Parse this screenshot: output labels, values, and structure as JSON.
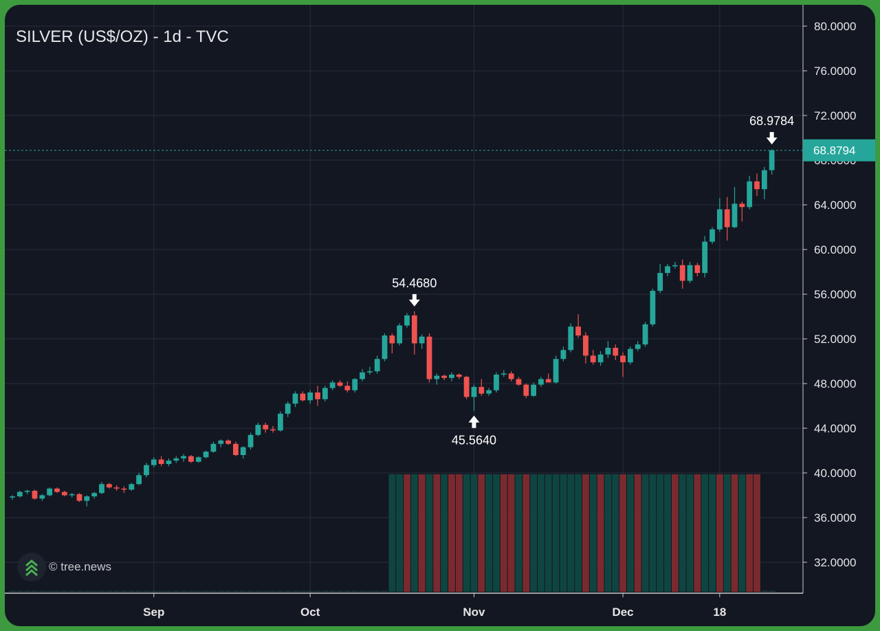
{
  "header": {
    "title": "SILVER (US$/OZ) - 1d - TVC"
  },
  "watermark": {
    "text": "© tree.news",
    "icon": "tree-news-chevrons-icon"
  },
  "colors": {
    "up": "#26a69a",
    "down": "#ef5350",
    "background": "#131722",
    "grid": "#2a2e39",
    "price_label_bg": "#26a69a",
    "volume_up": "#0f4540",
    "volume_down": "#7a2a2f"
  },
  "chart_data": {
    "type": "candlestick",
    "title": "SILVER (US$/OZ) - 1d - TVC",
    "y_axis": {
      "ticks": [
        "80.0000",
        "76.0000",
        "72.0000",
        "68.0000",
        "64.0000",
        "60.0000",
        "56.0000",
        "52.0000",
        "48.0000",
        "44.0000",
        "40.0000",
        "36.0000",
        "32.0000"
      ],
      "range": [
        29.5,
        81.5
      ],
      "side": "right",
      "grid": true
    },
    "x_axis": {
      "labels": [
        "Sep",
        "Oct",
        "Nov",
        "Dec",
        "18"
      ]
    },
    "current_price": {
      "label": "68.8794",
      "value": 68.8794
    },
    "annotations": [
      {
        "text": "54.4680",
        "kind": "high",
        "value": 54.468
      },
      {
        "text": "45.5640",
        "kind": "low",
        "value": 45.564
      },
      {
        "text": "68.9784",
        "kind": "high",
        "value": 68.9784
      }
    ],
    "candles": [
      [
        37.8,
        38.0,
        37.6,
        37.9
      ],
      [
        37.9,
        38.4,
        37.8,
        38.3
      ],
      [
        38.3,
        38.5,
        38.1,
        38.4
      ],
      [
        38.4,
        38.5,
        37.6,
        37.7
      ],
      [
        37.7,
        38.1,
        37.5,
        38.0
      ],
      [
        38.0,
        38.7,
        37.9,
        38.6
      ],
      [
        38.6,
        38.7,
        38.2,
        38.3
      ],
      [
        38.3,
        38.4,
        37.9,
        38.0
      ],
      [
        38.0,
        38.2,
        37.8,
        38.1
      ],
      [
        38.1,
        38.2,
        37.4,
        37.5
      ],
      [
        37.5,
        38.0,
        37.0,
        37.9
      ],
      [
        37.9,
        38.3,
        37.7,
        38.2
      ],
      [
        38.2,
        39.2,
        38.1,
        39.0
      ],
      [
        39.0,
        39.1,
        38.6,
        38.7
      ],
      [
        38.7,
        38.9,
        38.4,
        38.6
      ],
      [
        38.6,
        38.8,
        38.2,
        38.5
      ],
      [
        38.5,
        39.1,
        38.4,
        39.0
      ],
      [
        39.0,
        40.0,
        38.9,
        39.8
      ],
      [
        39.8,
        40.9,
        39.6,
        40.7
      ],
      [
        40.7,
        41.4,
        40.5,
        41.2
      ],
      [
        41.2,
        41.5,
        40.6,
        40.8
      ],
      [
        40.8,
        41.3,
        40.6,
        41.1
      ],
      [
        41.1,
        41.5,
        40.9,
        41.3
      ],
      [
        41.3,
        41.7,
        41.0,
        41.5
      ],
      [
        41.5,
        41.6,
        40.9,
        41.0
      ],
      [
        41.0,
        41.5,
        40.9,
        41.4
      ],
      [
        41.4,
        42.0,
        41.3,
        41.9
      ],
      [
        41.9,
        42.8,
        41.8,
        42.6
      ],
      [
        42.6,
        43.0,
        42.3,
        42.9
      ],
      [
        42.9,
        43.0,
        42.5,
        42.6
      ],
      [
        42.6,
        42.8,
        41.5,
        41.6
      ],
      [
        41.6,
        42.4,
        41.3,
        42.3
      ],
      [
        42.3,
        43.6,
        42.1,
        43.4
      ],
      [
        43.4,
        44.5,
        43.3,
        44.3
      ],
      [
        44.3,
        44.5,
        43.6,
        43.9
      ],
      [
        43.9,
        44.2,
        43.6,
        43.8
      ],
      [
        43.8,
        45.5,
        43.7,
        45.3
      ],
      [
        45.3,
        46.4,
        45.0,
        46.2
      ],
      [
        46.2,
        47.3,
        45.9,
        47.1
      ],
      [
        47.1,
        47.3,
        46.4,
        46.5
      ],
      [
        46.5,
        47.4,
        46.2,
        47.2
      ],
      [
        47.2,
        47.8,
        46.0,
        46.6
      ],
      [
        46.6,
        47.8,
        46.4,
        47.6
      ],
      [
        47.6,
        48.3,
        47.4,
        48.1
      ],
      [
        48.1,
        48.3,
        47.7,
        47.8
      ],
      [
        47.8,
        48.2,
        47.2,
        47.4
      ],
      [
        47.4,
        48.5,
        47.2,
        48.4
      ],
      [
        48.4,
        49.3,
        48.2,
        49.0
      ],
      [
        49.0,
        49.5,
        48.8,
        49.1
      ],
      [
        49.1,
        50.5,
        48.9,
        50.2
      ],
      [
        50.2,
        52.5,
        50.0,
        52.3
      ],
      [
        52.3,
        52.5,
        50.7,
        51.6
      ],
      [
        51.6,
        53.4,
        51.4,
        53.2
      ],
      [
        53.2,
        54.3,
        53.0,
        54.1
      ],
      [
        54.1,
        54.468,
        50.6,
        51.6
      ],
      [
        51.6,
        52.4,
        51.1,
        52.2
      ],
      [
        52.2,
        52.5,
        48.1,
        48.4
      ],
      [
        48.4,
        48.9,
        47.9,
        48.7
      ],
      [
        48.7,
        48.8,
        48.3,
        48.5
      ],
      [
        48.5,
        49.0,
        48.2,
        48.8
      ],
      [
        48.8,
        48.9,
        48.4,
        48.6
      ],
      [
        48.6,
        48.7,
        46.6,
        46.8
      ],
      [
        46.8,
        47.9,
        45.564,
        47.7
      ],
      [
        47.7,
        48.4,
        46.9,
        47.1
      ],
      [
        47.1,
        47.6,
        46.9,
        47.4
      ],
      [
        47.4,
        49.0,
        47.2,
        48.8
      ],
      [
        48.8,
        49.2,
        48.6,
        48.9
      ],
      [
        48.9,
        49.1,
        48.2,
        48.4
      ],
      [
        48.4,
        48.6,
        47.8,
        47.9
      ],
      [
        47.9,
        48.0,
        46.7,
        46.9
      ],
      [
        46.9,
        48.1,
        46.8,
        47.9
      ],
      [
        47.9,
        48.6,
        47.7,
        48.4
      ],
      [
        48.4,
        48.9,
        48.1,
        48.1
      ],
      [
        48.1,
        50.5,
        48.0,
        50.2
      ],
      [
        50.2,
        51.3,
        50.0,
        51.0
      ],
      [
        51.0,
        53.4,
        50.8,
        53.1
      ],
      [
        53.1,
        54.2,
        52.1,
        52.3
      ],
      [
        52.3,
        52.6,
        49.8,
        50.5
      ],
      [
        50.5,
        51.0,
        49.7,
        49.9
      ],
      [
        49.9,
        50.9,
        49.6,
        50.6
      ],
      [
        50.6,
        51.8,
        50.3,
        51.2
      ],
      [
        51.2,
        51.5,
        50.1,
        50.5
      ],
      [
        50.5,
        50.8,
        48.6,
        49.9
      ],
      [
        49.9,
        51.3,
        49.7,
        51.1
      ],
      [
        51.1,
        51.8,
        50.9,
        51.5
      ],
      [
        51.5,
        53.5,
        51.3,
        53.3
      ],
      [
        53.3,
        56.5,
        53.1,
        56.3
      ],
      [
        56.3,
        58.7,
        56.1,
        57.9
      ],
      [
        57.9,
        58.7,
        57.6,
        58.5
      ],
      [
        58.5,
        58.9,
        58.3,
        58.6
      ],
      [
        58.6,
        59.1,
        56.5,
        57.2
      ],
      [
        57.2,
        58.9,
        57.0,
        58.6
      ],
      [
        58.6,
        58.8,
        57.6,
        57.9
      ],
      [
        57.9,
        61.2,
        57.5,
        60.7
      ],
      [
        60.7,
        62.0,
        60.5,
        61.8
      ],
      [
        61.8,
        64.6,
        61.6,
        63.6
      ],
      [
        63.6,
        64.7,
        60.8,
        62.0
      ],
      [
        62.0,
        65.6,
        61.9,
        64.1
      ],
      [
        64.1,
        64.3,
        62.5,
        63.8
      ],
      [
        63.8,
        66.6,
        63.6,
        66.1
      ],
      [
        66.1,
        66.8,
        64.8,
        65.4
      ],
      [
        65.4,
        67.4,
        64.5,
        67.1
      ],
      [
        67.1,
        68.9784,
        66.7,
        68.8794
      ]
    ],
    "volume": {
      "start_index": 51,
      "directions": "UUDUDUDUDDUUDUUDDUDUUUUUUUDUDUUDUDUUUUDUUDUUDUDUDD",
      "last_value": 0
    }
  }
}
